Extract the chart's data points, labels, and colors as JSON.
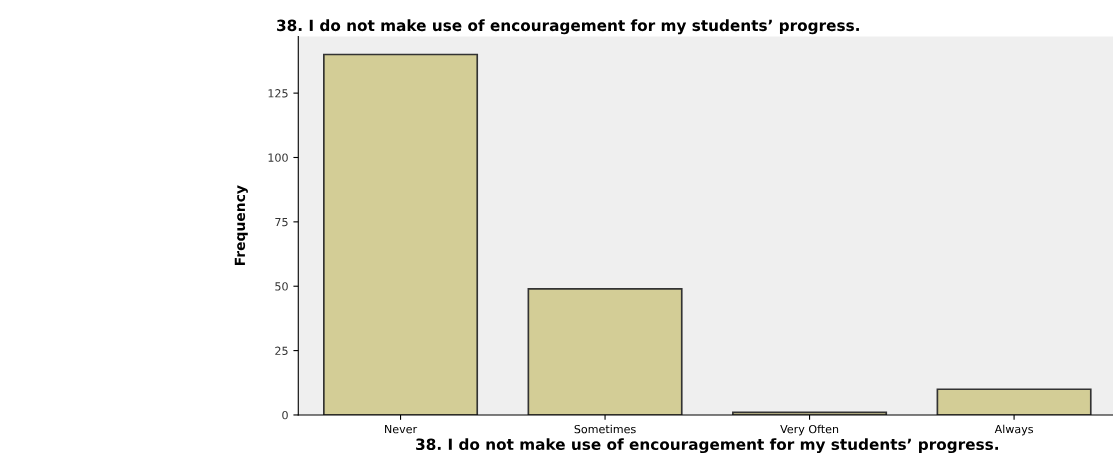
{
  "chart_data": {
    "type": "bar",
    "title": "38. I do not make use of encouragement for my students’ progress.",
    "xlabel": "38. I do not make use of encouragement for my students’ progress.",
    "ylabel": "Frequency",
    "categories": [
      "Never",
      "Sometimes",
      "Very Often",
      "Always"
    ],
    "values": [
      140,
      49,
      1,
      10
    ],
    "color": "#d3cd96",
    "ylim": [
      0,
      147
    ],
    "yticks": [
      0,
      25,
      50,
      75,
      100,
      125
    ],
    "grid": false
  }
}
